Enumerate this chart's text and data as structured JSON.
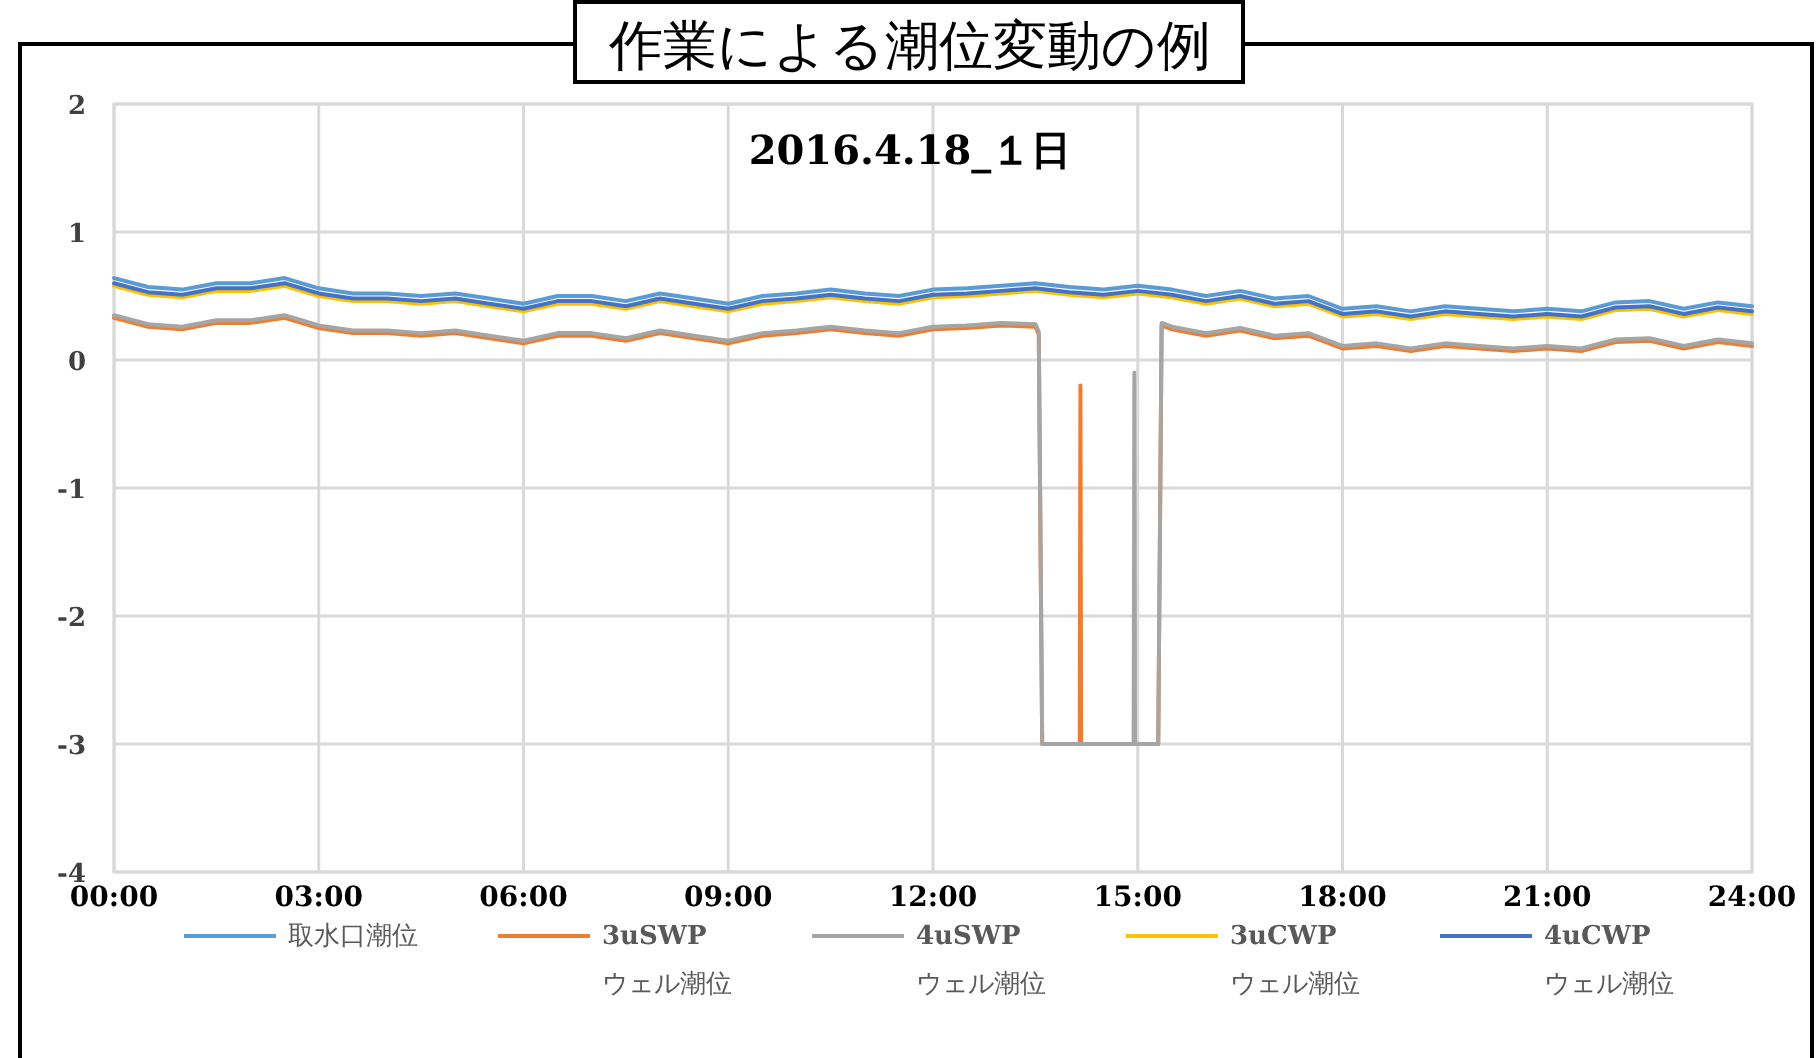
{
  "chart_data": {
    "type": "line",
    "title": "作業による潮位変動の例",
    "subtitle": "2016.4.18_１日",
    "xlim": [
      0,
      24
    ],
    "xticks": [
      {
        "value": 0,
        "label": "00:00"
      },
      {
        "value": 3,
        "label": "03:00"
      },
      {
        "value": 6,
        "label": "06:00"
      },
      {
        "value": 9,
        "label": "09:00"
      },
      {
        "value": 12,
        "label": "12:00"
      },
      {
        "value": 15,
        "label": "15:00"
      },
      {
        "value": 18,
        "label": "18:00"
      },
      {
        "value": 21,
        "label": "21:00"
      },
      {
        "value": 24,
        "label": "24:00"
      }
    ],
    "ylim": [
      -4,
      2
    ],
    "yticks": [
      -4,
      -3,
      -2,
      -1,
      0,
      1,
      2
    ],
    "grid": true,
    "legend": "bottom",
    "line_style": "solid",
    "marker": "none",
    "series": [
      {
        "name": "取水口潮位",
        "color": "#5b9bd5",
        "x": [
          0,
          0.5,
          1,
          1.5,
          2,
          2.5,
          3,
          3.5,
          4,
          4.5,
          5,
          5.5,
          6,
          6.5,
          7,
          7.5,
          8,
          8.5,
          9,
          9.5,
          10,
          10.5,
          11,
          11.5,
          12,
          12.5,
          13,
          13.5,
          14,
          14.5,
          15,
          15.5,
          16,
          16.5,
          17,
          17.5,
          18,
          18.5,
          19,
          19.5,
          20,
          20.5,
          21,
          21.5,
          22,
          22.5,
          23,
          23.5,
          24
        ],
        "values": [
          0.64,
          0.57,
          0.55,
          0.6,
          0.6,
          0.64,
          0.56,
          0.52,
          0.52,
          0.5,
          0.52,
          0.48,
          0.44,
          0.5,
          0.5,
          0.46,
          0.52,
          0.48,
          0.44,
          0.5,
          0.52,
          0.55,
          0.52,
          0.5,
          0.55,
          0.56,
          0.58,
          0.6,
          0.57,
          0.55,
          0.58,
          0.55,
          0.5,
          0.54,
          0.48,
          0.5,
          0.4,
          0.42,
          0.38,
          0.42,
          0.4,
          0.38,
          0.4,
          0.38,
          0.45,
          0.46,
          0.4,
          0.45,
          0.42
        ]
      },
      {
        "name": "3uSWP ウェル潮位",
        "color": "#ed7d31",
        "x": [
          0,
          0.5,
          1,
          1.5,
          2,
          2.5,
          3,
          3.5,
          4,
          4.5,
          5,
          5.5,
          6,
          6.5,
          7,
          7.5,
          8,
          8.5,
          9,
          9.5,
          10,
          10.5,
          11,
          11.5,
          12,
          12.5,
          13,
          13.5,
          13.55,
          13.6,
          14.15,
          14.16,
          14.17,
          15.3,
          15.35,
          15.5,
          16,
          16.5,
          17,
          17.5,
          18,
          18.5,
          19,
          19.5,
          20,
          20.5,
          21,
          21.5,
          22,
          22.5,
          23,
          23.5,
          24
        ],
        "values": [
          0.33,
          0.26,
          0.24,
          0.29,
          0.29,
          0.33,
          0.25,
          0.21,
          0.21,
          0.19,
          0.21,
          0.17,
          0.13,
          0.19,
          0.19,
          0.15,
          0.21,
          0.17,
          0.13,
          0.19,
          0.21,
          0.24,
          0.21,
          0.19,
          0.24,
          0.25,
          0.27,
          0.26,
          0.2,
          -3,
          -3,
          -0.2,
          -3,
          -3,
          0.27,
          0.24,
          0.19,
          0.23,
          0.17,
          0.19,
          0.09,
          0.11,
          0.07,
          0.11,
          0.09,
          0.07,
          0.09,
          0.07,
          0.14,
          0.15,
          0.09,
          0.14,
          0.11
        ]
      },
      {
        "name": "4uSWP ウェル潮位",
        "color": "#a5a5a5",
        "x": [
          0,
          0.5,
          1,
          1.5,
          2,
          2.5,
          3,
          3.5,
          4,
          4.5,
          5,
          5.5,
          6,
          6.5,
          7,
          7.5,
          8,
          8.5,
          9,
          9.5,
          10,
          10.5,
          11,
          11.5,
          12,
          12.5,
          13,
          13.5,
          13.55,
          13.6,
          14.94,
          14.95,
          14.96,
          15.3,
          15.35,
          15.5,
          16,
          16.5,
          17,
          17.5,
          18,
          18.5,
          19,
          19.5,
          20,
          20.5,
          21,
          21.5,
          22,
          22.5,
          23,
          23.5,
          24
        ],
        "values": [
          0.35,
          0.28,
          0.26,
          0.31,
          0.31,
          0.35,
          0.27,
          0.23,
          0.23,
          0.21,
          0.23,
          0.19,
          0.15,
          0.21,
          0.21,
          0.17,
          0.23,
          0.19,
          0.15,
          0.21,
          0.23,
          0.26,
          0.23,
          0.21,
          0.26,
          0.27,
          0.29,
          0.28,
          0.22,
          -3,
          -3,
          -0.1,
          -3,
          -3,
          0.29,
          0.26,
          0.21,
          0.25,
          0.19,
          0.21,
          0.11,
          0.13,
          0.09,
          0.13,
          0.11,
          0.09,
          0.11,
          0.09,
          0.16,
          0.17,
          0.11,
          0.16,
          0.13
        ]
      },
      {
        "name": "3uCWP ウェル潮位",
        "color": "#ffc000",
        "x": [
          0,
          0.5,
          1,
          1.5,
          2,
          2.5,
          3,
          3.5,
          4,
          4.5,
          5,
          5.5,
          6,
          6.5,
          7,
          7.5,
          8,
          8.5,
          9,
          9.5,
          10,
          10.5,
          11,
          11.5,
          12,
          12.5,
          13,
          13.5,
          14,
          14.5,
          15,
          15.5,
          16,
          16.5,
          17,
          17.5,
          18,
          18.5,
          19,
          19.5,
          20,
          20.5,
          21,
          21.5,
          22,
          22.5,
          23,
          23.5,
          24
        ],
        "values": [
          0.58,
          0.51,
          0.49,
          0.54,
          0.54,
          0.58,
          0.5,
          0.46,
          0.46,
          0.44,
          0.46,
          0.42,
          0.38,
          0.44,
          0.44,
          0.4,
          0.46,
          0.42,
          0.38,
          0.44,
          0.46,
          0.49,
          0.46,
          0.44,
          0.49,
          0.5,
          0.52,
          0.54,
          0.51,
          0.49,
          0.52,
          0.49,
          0.44,
          0.48,
          0.42,
          0.44,
          0.34,
          0.36,
          0.32,
          0.36,
          0.34,
          0.32,
          0.34,
          0.32,
          0.39,
          0.4,
          0.34,
          0.39,
          0.36
        ]
      },
      {
        "name": "4uCWP ウェル潮位",
        "color": "#4472c4",
        "x": [
          0,
          0.5,
          1,
          1.5,
          2,
          2.5,
          3,
          3.5,
          4,
          4.5,
          5,
          5.5,
          6,
          6.5,
          7,
          7.5,
          8,
          8.5,
          9,
          9.5,
          10,
          10.5,
          11,
          11.5,
          12,
          12.5,
          13,
          13.5,
          14,
          14.5,
          15,
          15.5,
          16,
          16.5,
          17,
          17.5,
          18,
          18.5,
          19,
          19.5,
          20,
          20.5,
          21,
          21.5,
          22,
          22.5,
          23,
          23.5,
          24
        ],
        "values": [
          0.6,
          0.53,
          0.51,
          0.56,
          0.56,
          0.6,
          0.52,
          0.48,
          0.48,
          0.46,
          0.48,
          0.44,
          0.4,
          0.46,
          0.46,
          0.42,
          0.48,
          0.44,
          0.4,
          0.46,
          0.48,
          0.51,
          0.48,
          0.46,
          0.51,
          0.52,
          0.54,
          0.56,
          0.53,
          0.51,
          0.54,
          0.51,
          0.46,
          0.5,
          0.44,
          0.46,
          0.36,
          0.38,
          0.34,
          0.38,
          0.36,
          0.34,
          0.36,
          0.34,
          0.41,
          0.42,
          0.36,
          0.41,
          0.38
        ]
      }
    ]
  }
}
